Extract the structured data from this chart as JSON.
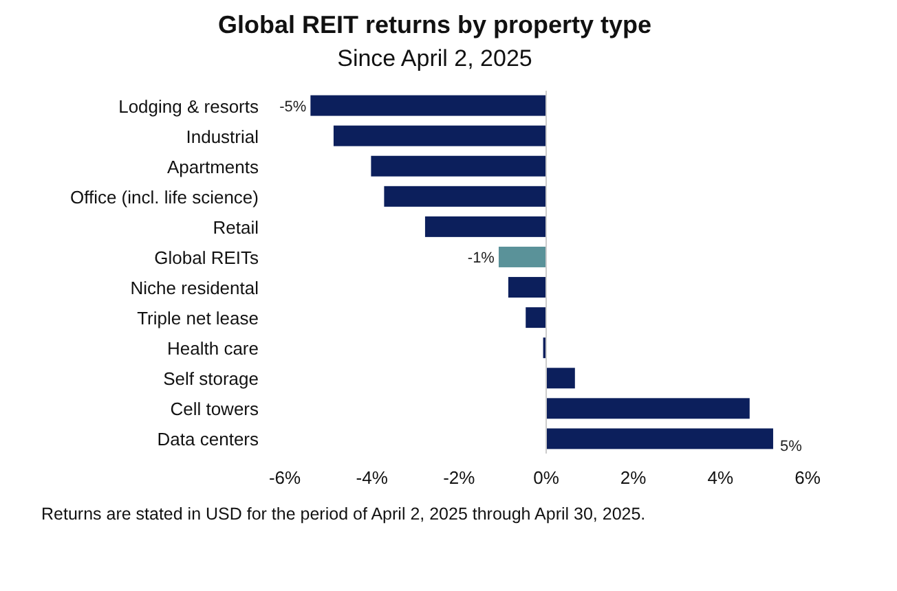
{
  "chart_data": {
    "type": "bar",
    "orientation": "horizontal",
    "title": "Global REIT returns by property type",
    "subtitle": "Since April 2, 2025",
    "categories": [
      "Lodging & resorts",
      "Industrial",
      "Apartments",
      "Office (incl. life science)",
      "Retail",
      "Global REITs",
      "Niche residental",
      "Triple net lease",
      "Health care",
      "Self storage",
      "Cell towers",
      "Data centers"
    ],
    "values": [
      -5.41,
      -4.88,
      -4.02,
      -3.72,
      -2.78,
      -1.09,
      -0.87,
      -0.47,
      -0.07,
      0.66,
      4.67,
      5.21
    ],
    "colors": [
      "#0c1f5c",
      "#0c1f5c",
      "#0c1f5c",
      "#0c1f5c",
      "#0c1f5c",
      "#5a9299",
      "#0c1f5c",
      "#0c1f5c",
      "#0c1f5c",
      "#0c1f5c",
      "#0c1f5c",
      "#0c1f5c"
    ],
    "value_labels": [
      "-5%",
      null,
      null,
      null,
      null,
      "-1%",
      null,
      null,
      null,
      null,
      null,
      "5%"
    ],
    "xlim": [
      -6,
      6
    ],
    "xticks": [
      {
        "value": -6,
        "label": "-6%"
      },
      {
        "value": -4,
        "label": "-4%"
      },
      {
        "value": -2,
        "label": "-2%"
      },
      {
        "value": 0,
        "label": "0%"
      },
      {
        "value": 2,
        "label": "2%"
      },
      {
        "value": 4,
        "label": "4%"
      },
      {
        "value": 6,
        "label": "6%"
      }
    ],
    "annotations": [
      "Returns are stated in USD for the period of April 2, 2025 through April 30, 2025."
    ]
  }
}
